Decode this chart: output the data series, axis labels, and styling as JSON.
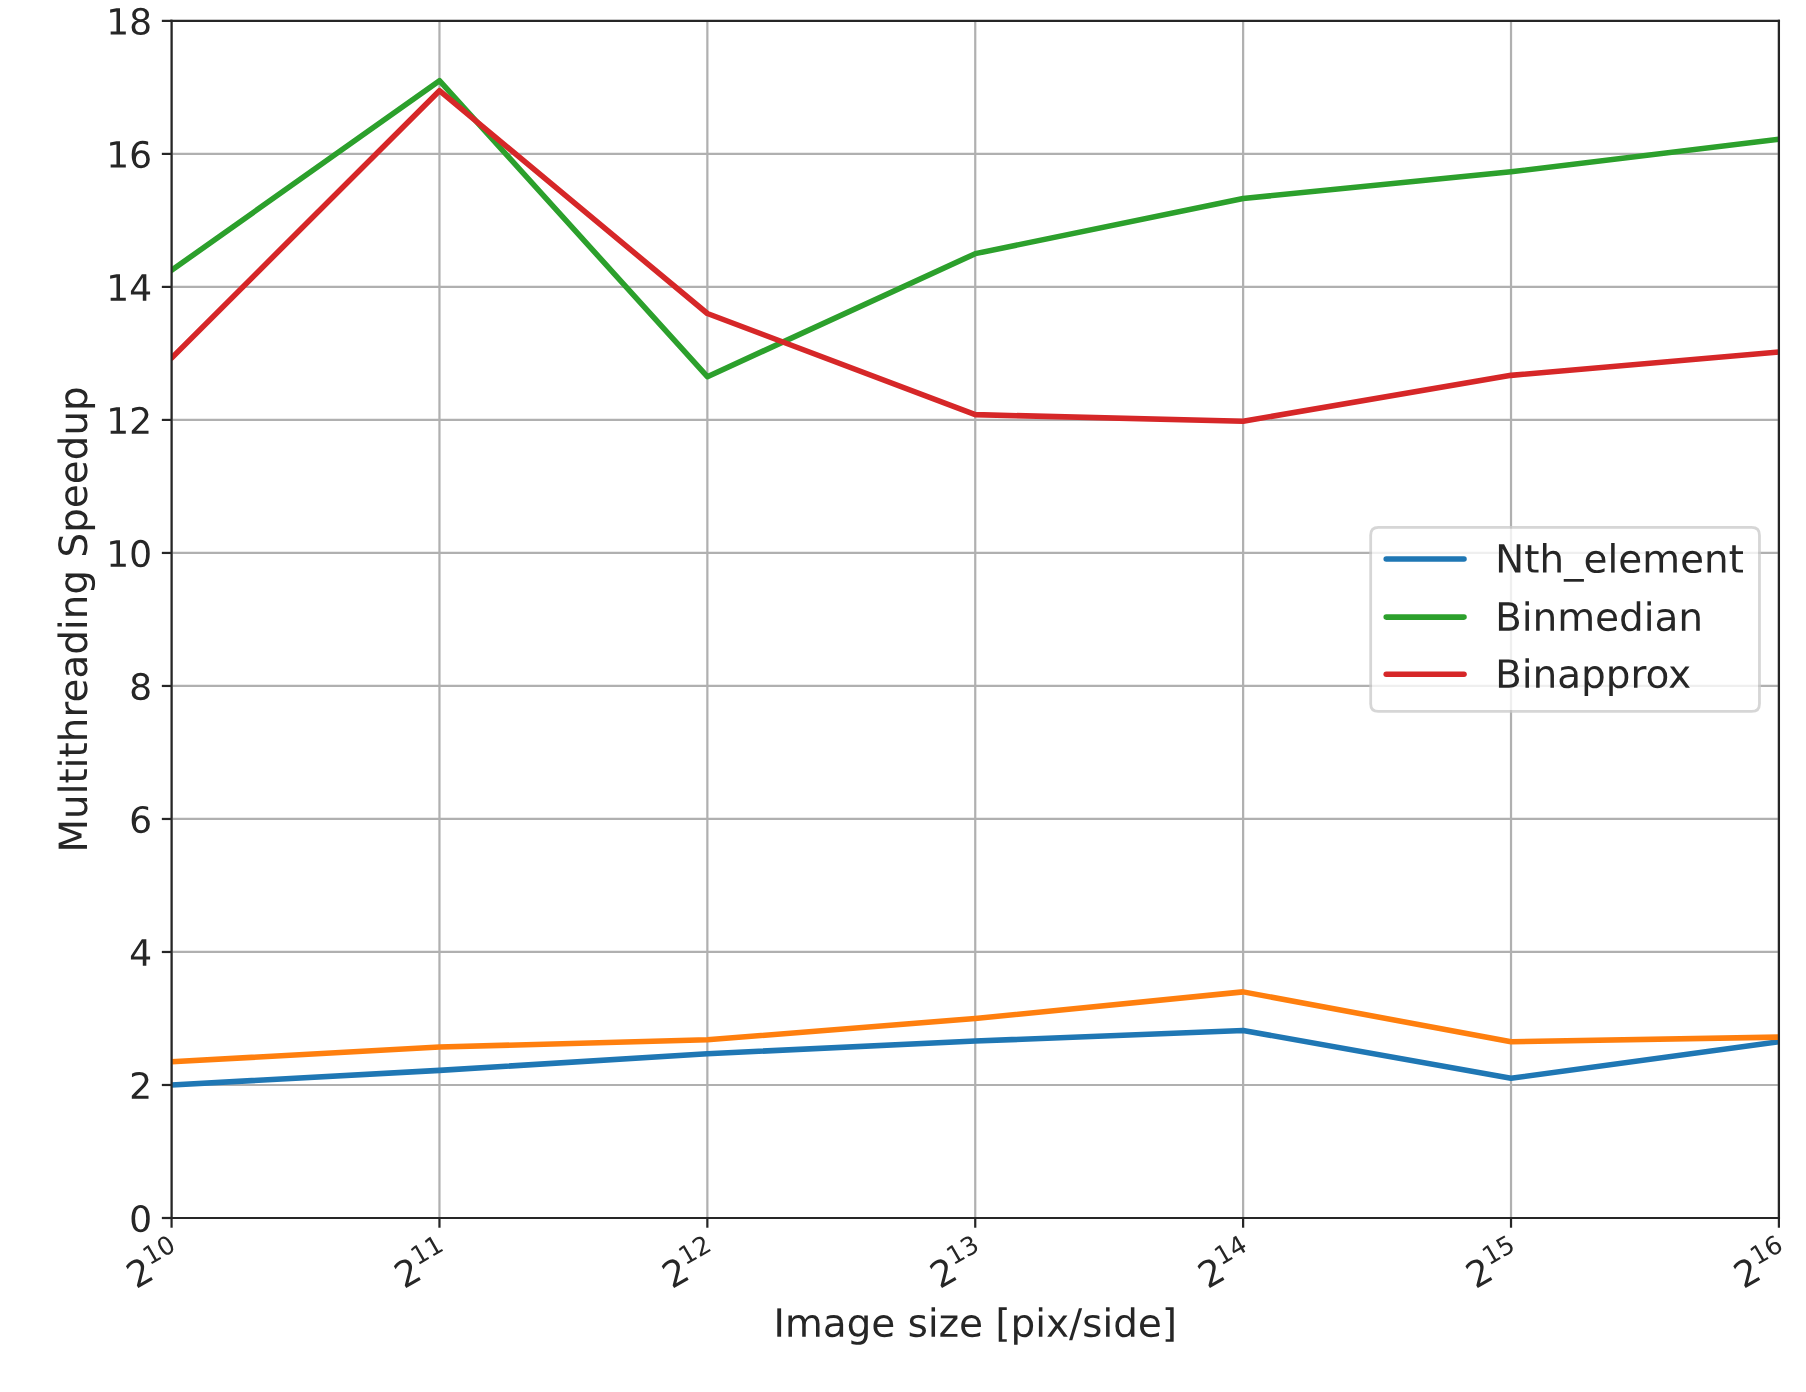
{
  "chart_data": {
    "type": "line",
    "xlabel": "Image size [pix/side]",
    "ylabel": "Multithreading Speedup",
    "x": [
      1024,
      2048,
      4096,
      8192,
      16384,
      32768,
      65536
    ],
    "series": [
      {
        "name": "Nth_element",
        "color": "#1f77b4",
        "values": [
          2.0,
          2.22,
          2.47,
          2.66,
          2.82,
          2.1,
          2.65
        ]
      },
      {
        "color": "#ff7f0e",
        "values": [
          2.35,
          2.57,
          2.68,
          3.0,
          3.4,
          2.65,
          2.72
        ]
      },
      {
        "name": "Binmedian",
        "color": "#2ca02c",
        "values": [
          14.25,
          17.1,
          12.65,
          14.5,
          15.33,
          15.73,
          16.22
        ]
      },
      {
        "name": "Binapprox",
        "color": "#d62728",
        "values": [
          12.93,
          16.95,
          13.6,
          12.08,
          11.98,
          12.67,
          13.02
        ]
      }
    ],
    "log": "x",
    "xlim": [
      1024,
      65536
    ],
    "xticks": [
      {
        "value": 1024,
        "label": "2$^{10}$"
      },
      {
        "value": 2048,
        "label": "2$^{11}$"
      },
      {
        "value": 4096,
        "label": "2$^{12}$"
      },
      {
        "value": 8192,
        "label": "2$^{13}$"
      },
      {
        "value": 16384,
        "label": "2$^{14}$"
      },
      {
        "value": 32768,
        "label": "2$^{15}$"
      },
      {
        "value": 65536,
        "label": "2$^{16}$"
      }
    ],
    "ylim": [
      0,
      18
    ],
    "yticks": [
      0,
      2,
      4,
      6,
      8,
      10,
      12,
      14,
      16,
      18
    ],
    "grid": true,
    "legend": "center right",
    "line_style": "solid",
    "marker": "none"
  }
}
